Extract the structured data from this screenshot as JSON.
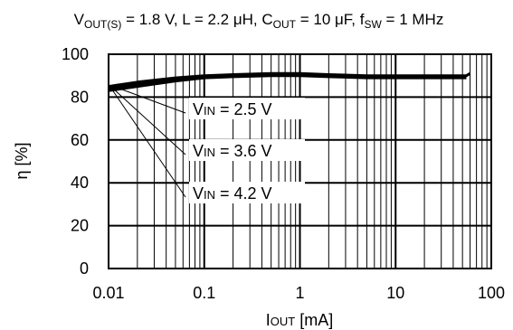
{
  "chart_data": {
    "type": "line",
    "title": {
      "v": "V",
      "v_sub": "OUT(S)",
      "v_rest": " = 1.8 V, L = 2.2 μH, C",
      "c_sub": "OUT",
      "c_rest": " = 10 μF, f",
      "f_sub": "SW",
      "f_rest": " = 1 MHz"
    },
    "xlabel": {
      "main": "I",
      "sub": "OUT",
      "unit": " [mA]"
    },
    "ylabel": "η [%]",
    "x_scale": "log",
    "xlim": [
      0.01,
      100
    ],
    "ylim": [
      0,
      100
    ],
    "x_ticks": [
      "0.01",
      "0.1",
      "1",
      "10",
      "100"
    ],
    "y_ticks": [
      "0",
      "20",
      "40",
      "60",
      "80",
      "100"
    ],
    "grid": true,
    "series": [
      {
        "name_main": "V",
        "name_sub": "IN",
        "name_rest": " = 2.5 V",
        "x": [
          0.01,
          0.02,
          0.05,
          0.1,
          0.2,
          0.5,
          1,
          2,
          5,
          10,
          20,
          55,
          60
        ],
        "y": [
          85,
          87,
          89,
          90,
          90.5,
          91,
          91,
          90.5,
          90,
          90,
          90,
          90,
          91
        ]
      },
      {
        "name_main": "V",
        "name_sub": "IN",
        "name_rest": " = 3.6 V",
        "x": [
          0.01,
          0.02,
          0.05,
          0.1,
          0.2,
          0.5,
          1,
          2,
          5,
          10,
          20,
          55
        ],
        "y": [
          84,
          86,
          88.5,
          89.5,
          90,
          90.5,
          90.5,
          90,
          89.5,
          89.5,
          89.5,
          89.5
        ]
      },
      {
        "name_main": "V",
        "name_sub": "IN",
        "name_rest": " = 4.2 V",
        "x": [
          0.01,
          0.02,
          0.05,
          0.1,
          0.2,
          0.5,
          1,
          2,
          5,
          10,
          20,
          55
        ],
        "y": [
          83,
          85,
          87.5,
          89,
          89.5,
          90,
          90,
          89.5,
          89,
          89,
          89,
          89
        ]
      }
    ]
  }
}
